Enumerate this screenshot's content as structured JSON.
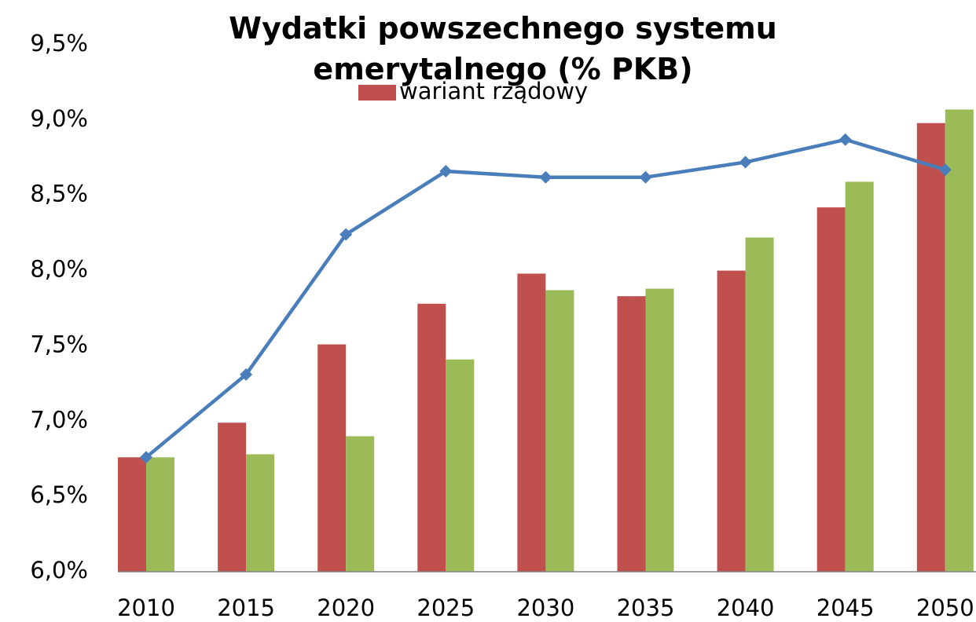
{
  "chart_data": {
    "type": "bar-line",
    "title": "Wydatki powszechnego systemu emerytalnego (% PKB)",
    "categories": [
      "2010",
      "2015",
      "2020",
      "2025",
      "2030",
      "2035",
      "2040",
      "2045",
      "2050"
    ],
    "series": [
      {
        "name": "wariant rządowy",
        "type": "bar",
        "color": "#c0504d",
        "values": [
          6.76,
          6.99,
          7.51,
          7.78,
          7.98,
          7.83,
          8.0,
          8.42,
          8.98
        ]
      },
      {
        "type": "bar",
        "color": "#9bbb59",
        "values": [
          6.76,
          6.78,
          6.9,
          7.41,
          7.87,
          7.88,
          8.22,
          8.59,
          9.07
        ]
      },
      {
        "type": "line",
        "color": "#4a7ebb",
        "values": [
          6.76,
          7.31,
          8.24,
          8.66,
          8.62,
          8.62,
          8.72,
          8.87,
          8.67
        ]
      }
    ],
    "ylim": [
      6.0,
      9.5
    ],
    "yticks": [
      {
        "value": 6.0,
        "label": "6,0%"
      },
      {
        "value": 6.5,
        "label": "6,5%"
      },
      {
        "value": 7.0,
        "label": "7,0%"
      },
      {
        "value": 7.5,
        "label": "7,5%"
      },
      {
        "value": 8.0,
        "label": "8,0%"
      },
      {
        "value": 8.5,
        "label": "8,5%"
      },
      {
        "value": 9.0,
        "label": "9,0%"
      },
      {
        "value": 9.5,
        "label": "9,5%"
      }
    ],
    "grid": false
  }
}
